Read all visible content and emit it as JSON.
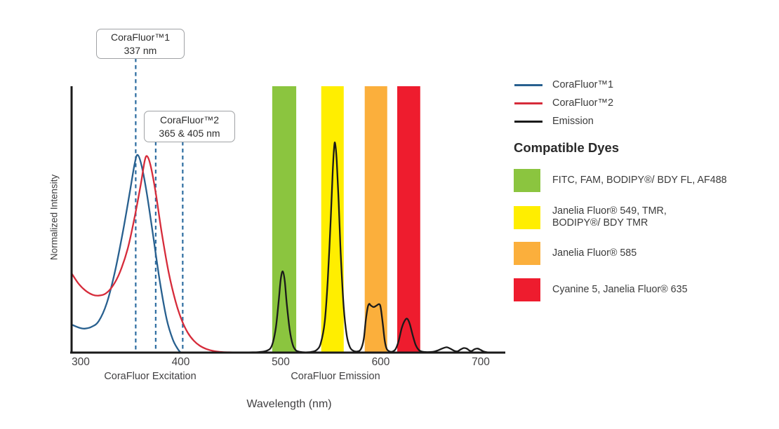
{
  "chart_data": {
    "type": "line",
    "xlabel": "Wavelength (nm)",
    "ylabel": "Normalized Intensity",
    "x_ticks": [
      300,
      400,
      500,
      600,
      700
    ],
    "x_range_nm": [
      291,
      724
    ],
    "ylim": [
      0,
      1
    ],
    "grid": false,
    "legend_position": "right",
    "x_section_labels": [
      {
        "text": "CoraFluor Excitation"
      },
      {
        "text": "CoraFluor Emission"
      }
    ],
    "annotations": [
      {
        "label": "CoraFluor™1",
        "value": "337 nm",
        "marker_nm_drawn": [
          355
        ]
      },
      {
        "label": "CoraFluor™2",
        "value": "365 & 405 nm",
        "marker_nm_drawn": [
          375,
          402
        ]
      }
    ],
    "marker_color": "#2d6da0",
    "series": [
      {
        "name": "CoraFluor™1",
        "color": "#28608F",
        "points": [
          [
            291,
            0.105
          ],
          [
            298,
            0.094
          ],
          [
            304,
            0.09
          ],
          [
            311,
            0.097
          ],
          [
            318,
            0.118
          ],
          [
            326,
            0.185
          ],
          [
            334,
            0.3
          ],
          [
            342,
            0.45
          ],
          [
            349,
            0.6
          ],
          [
            354,
            0.71
          ],
          [
            357,
            0.742
          ],
          [
            361,
            0.7
          ],
          [
            366,
            0.6
          ],
          [
            372,
            0.45
          ],
          [
            379,
            0.27
          ],
          [
            386,
            0.125
          ],
          [
            392,
            0.05
          ],
          [
            397,
            0.014
          ],
          [
            400,
            0
          ]
        ]
      },
      {
        "name": "CoraFluor™2",
        "color": "#D62B3A",
        "points": [
          [
            291,
            0.297
          ],
          [
            298,
            0.258
          ],
          [
            305,
            0.232
          ],
          [
            312,
            0.217
          ],
          [
            318,
            0.214
          ],
          [
            325,
            0.222
          ],
          [
            332,
            0.25
          ],
          [
            339,
            0.3
          ],
          [
            347,
            0.39
          ],
          [
            354,
            0.51
          ],
          [
            360,
            0.63
          ],
          [
            364,
            0.72
          ],
          [
            366.5,
            0.737
          ],
          [
            370,
            0.7
          ],
          [
            375,
            0.6
          ],
          [
            381,
            0.45
          ],
          [
            388,
            0.3
          ],
          [
            395,
            0.19
          ],
          [
            401,
            0.122
          ],
          [
            407,
            0.075
          ],
          [
            413,
            0.045
          ],
          [
            419,
            0.026
          ],
          [
            426,
            0.013
          ],
          [
            433,
            0.006
          ],
          [
            442,
            0.002
          ],
          [
            452,
            0.001
          ],
          [
            462,
            0
          ]
        ]
      },
      {
        "name": "Emission",
        "color": "#1A1A1A",
        "points": [
          [
            440,
            0
          ],
          [
            468,
            0.001
          ],
          [
            478,
            0.002
          ],
          [
            486,
            0.007
          ],
          [
            491,
            0.025
          ],
          [
            495,
            0.09
          ],
          [
            498,
            0.195
          ],
          [
            500,
            0.275
          ],
          [
            502,
            0.305
          ],
          [
            504,
            0.27
          ],
          [
            506,
            0.185
          ],
          [
            509,
            0.085
          ],
          [
            512,
            0.03
          ],
          [
            515,
            0.009
          ],
          [
            519,
            0.003
          ],
          [
            525,
            0.001
          ],
          [
            531,
            0.003
          ],
          [
            536,
            0.01
          ],
          [
            540,
            0.035
          ],
          [
            544,
            0.115
          ],
          [
            547,
            0.27
          ],
          [
            550,
            0.5
          ],
          [
            552,
            0.68
          ],
          [
            553.5,
            0.775
          ],
          [
            554.5,
            0.783
          ],
          [
            556,
            0.72
          ],
          [
            558,
            0.56
          ],
          [
            560,
            0.37
          ],
          [
            563,
            0.17
          ],
          [
            566,
            0.065
          ],
          [
            569,
            0.022
          ],
          [
            572,
            0.008
          ],
          [
            576,
            0.004
          ],
          [
            580,
            0.012
          ],
          [
            583,
            0.05
          ],
          [
            585,
            0.12
          ],
          [
            587,
            0.17
          ],
          [
            588.5,
            0.183
          ],
          [
            590,
            0.177
          ],
          [
            593,
            0.171
          ],
          [
            596,
            0.177
          ],
          [
            598.5,
            0.182
          ],
          [
            600,
            0.168
          ],
          [
            602,
            0.11
          ],
          [
            604,
            0.045
          ],
          [
            606,
            0.014
          ],
          [
            609,
            0.004
          ],
          [
            612,
            0.004
          ],
          [
            615,
            0.014
          ],
          [
            618,
            0.045
          ],
          [
            621,
            0.092
          ],
          [
            624,
            0.12
          ],
          [
            626.5,
            0.127
          ],
          [
            629,
            0.108
          ],
          [
            632,
            0.065
          ],
          [
            635,
            0.028
          ],
          [
            638,
            0.01
          ],
          [
            641,
            0.004
          ],
          [
            646,
            0.002
          ],
          [
            652,
            0.003
          ],
          [
            657,
            0.008
          ],
          [
            662,
            0.016
          ],
          [
            666,
            0.02
          ],
          [
            670,
            0.014
          ],
          [
            674,
            0.006
          ],
          [
            677,
            0.005
          ],
          [
            680,
            0.012
          ],
          [
            683,
            0.017
          ],
          [
            686,
            0.015
          ],
          [
            689,
            0.007
          ],
          [
            691,
            0.006
          ],
          [
            694,
            0.013
          ],
          [
            697,
            0.015
          ],
          [
            700,
            0.01
          ],
          [
            703,
            0.004
          ],
          [
            707,
            0.001
          ],
          [
            714,
            0
          ]
        ]
      }
    ],
    "bands": [
      {
        "color": "#8BC53F",
        "nm": [
          491.5,
          515.5
        ]
      },
      {
        "color": "#FFEE00",
        "nm": [
          540.5,
          563
        ]
      },
      {
        "color": "#FBAF3C",
        "nm": [
          584,
          606.5
        ]
      },
      {
        "color": "#EE1C2E",
        "nm": [
          616.5,
          639.5
        ]
      }
    ]
  },
  "ui": {
    "legend": {
      "items": [
        {
          "label": "CoraFluor™1",
          "color": "#28608F"
        },
        {
          "label": "CoraFluor™2",
          "color": "#D62B3A"
        },
        {
          "label": "Emission",
          "color": "#1A1A1A"
        }
      ]
    },
    "compatible_dyes": {
      "title": "Compatible Dyes",
      "items": [
        {
          "lines": [
            "FITC, FAM, BODIPY®/ BDY FL, AF488"
          ]
        },
        {
          "lines": [
            "Janelia Fluor® 549, TMR,",
            "BODIPY®/ BDY TMR"
          ]
        },
        {
          "lines": [
            "Janelia Fluor® 585"
          ]
        },
        {
          "lines": [
            "Cyanine 5, Janelia Fluor® 635"
          ]
        }
      ]
    }
  }
}
